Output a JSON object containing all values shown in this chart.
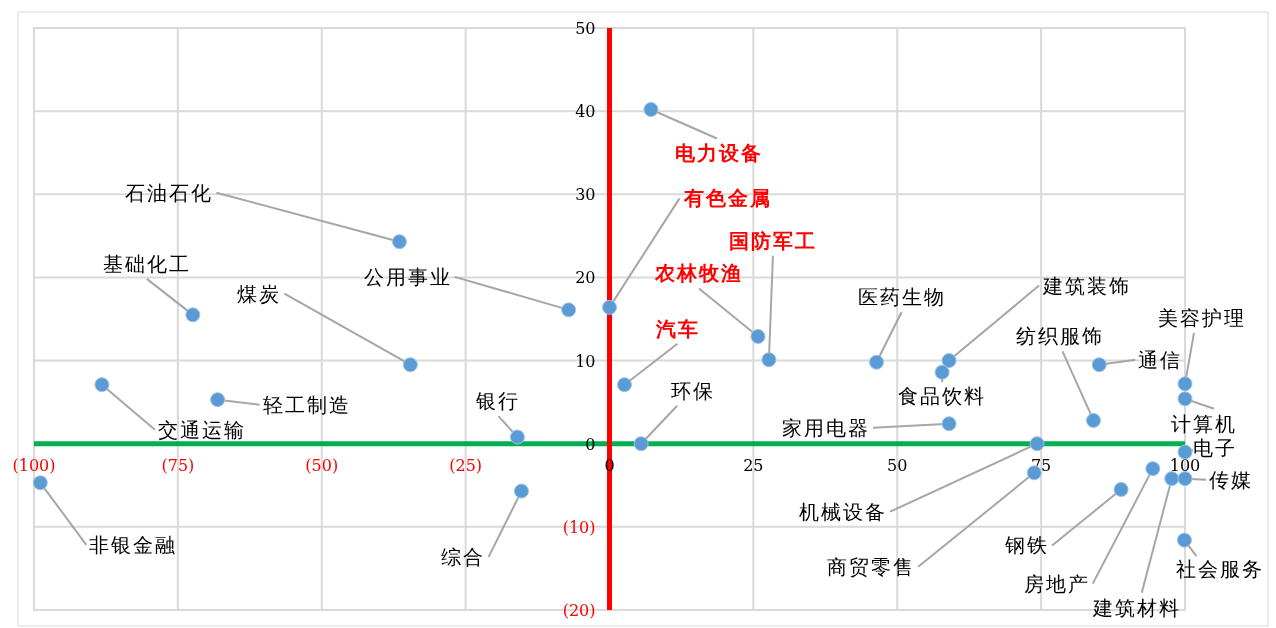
{
  "chart_data": {
    "type": "scatter",
    "color": "#5b9bd5",
    "marker": "circle",
    "grid": true,
    "x": [
      7.2,
      -36.5,
      0,
      -7.1,
      -72.4,
      27.7,
      25.8,
      -34.6,
      2.6,
      46.4,
      59,
      57.8,
      84.1,
      85.1,
      100,
      100,
      100,
      -88.2,
      -68.1,
      -16,
      5.5,
      59,
      74.3,
      -98.9,
      -15.3,
      73.8,
      88.9,
      94.4,
      97.7,
      100,
      99.9
    ],
    "values": [
      40.2,
      24.3,
      16.4,
      16.1,
      15.5,
      10.1,
      12.9,
      9.5,
      7.1,
      9.8,
      10,
      8.6,
      2.8,
      9.5,
      7.2,
      5.4,
      -1,
      7.1,
      5.3,
      0.8,
      0,
      2.4,
      0,
      -4.7,
      -5.7,
      -3.5,
      -5.5,
      -3,
      -4.2,
      -4.2,
      -11.6
    ],
    "annotations": [
      {
        "text": "电力设备",
        "x": 7.2,
        "y": 40.2
      },
      {
        "text": "石油石化",
        "x": -36.5,
        "y": 24.3
      },
      {
        "text": "有色金属",
        "x": 0,
        "y": 16.4
      },
      {
        "text": "公用事业",
        "x": -7.1,
        "y": 16.1
      },
      {
        "text": "基础化工",
        "x": -72.4,
        "y": 15.5
      },
      {
        "text": "国防军工",
        "x": 27.7,
        "y": 10.1
      },
      {
        "text": "农林牧渔",
        "x": 25.8,
        "y": 12.9
      },
      {
        "text": "煤炭",
        "x": -34.6,
        "y": 9.5
      },
      {
        "text": "汽车",
        "x": 2.6,
        "y": 7.1
      },
      {
        "text": "医药生物",
        "x": 46.4,
        "y": 9.8
      },
      {
        "text": "建筑装饰",
        "x": 59,
        "y": 10
      },
      {
        "text": "食品饮料",
        "x": 57.8,
        "y": 8.6
      },
      {
        "text": "纺织服饰",
        "x": 84.1,
        "y": 2.8
      },
      {
        "text": "通信",
        "x": 85.1,
        "y": 9.5
      },
      {
        "text": "美容护理",
        "x": 100,
        "y": 7.2
      },
      {
        "text": "计算机",
        "x": 100,
        "y": 5.4
      },
      {
        "text": "电子",
        "x": 100,
        "y": -1
      },
      {
        "text": "交通运输",
        "x": -88.2,
        "y": 7.1
      },
      {
        "text": "轻工制造",
        "x": -68.1,
        "y": 5.3
      },
      {
        "text": "银行",
        "x": -16,
        "y": 0.8
      },
      {
        "text": "环保",
        "x": 5.5,
        "y": 0
      },
      {
        "text": "家用电器",
        "x": 59,
        "y": 2.4
      },
      {
        "text": "机械设备",
        "x": 74.3,
        "y": 0
      },
      {
        "text": "非银金融",
        "x": -98.9,
        "y": -4.7
      },
      {
        "text": "综合",
        "x": -15.3,
        "y": -5.7
      },
      {
        "text": "商贸零售",
        "x": 73.8,
        "y": -3.5
      },
      {
        "text": "钢铁",
        "x": 88.9,
        "y": -5.5
      },
      {
        "text": "房地产",
        "x": 94.4,
        "y": -3
      },
      {
        "text": "建筑材料",
        "x": 97.7,
        "y": -4.2
      },
      {
        "text": "传媒",
        "x": 100,
        "y": -4.2
      },
      {
        "text": "社会服务",
        "x": 99.9,
        "y": -11.6
      }
    ],
    "xlim": [
      -100,
      100
    ],
    "ylim": [
      -20,
      50
    ],
    "xticks": [
      {
        "value": -100,
        "label": "(100)"
      },
      {
        "value": -75,
        "label": "(75)"
      },
      {
        "value": -50,
        "label": "(50)"
      },
      {
        "value": -25,
        "label": "(25)"
      },
      0,
      25,
      50,
      75,
      100
    ],
    "yticks": [
      {
        "value": -20,
        "label": "(20)"
      },
      {
        "value": -10,
        "label": "(10)"
      },
      0,
      10,
      20,
      30,
      40,
      50
    ]
  }
}
